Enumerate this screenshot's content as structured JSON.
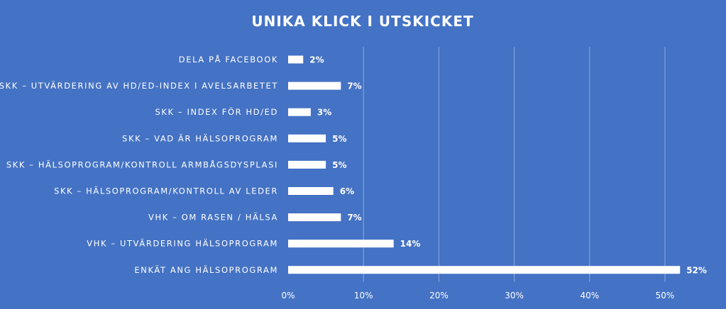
{
  "chart_data": {
    "type": "bar",
    "orientation": "horizontal",
    "title": "UNIKA KLICK I UTSKICKET",
    "categories": [
      "DELA PÅ FACEBOOK",
      "SKK – UTVÄRDERING AV HD/ED-INDEX I AVELSARBETET",
      "SKK – INDEX FÖR HD/ED",
      "SKK – VAD ÄR HÄLSOPROGRAM",
      "SKK – HÄLSOPROGRAM/KONTROLL ARMBÅGSDYSPLASI",
      "SKK – HÄLSOPROGRAM/KONTROLL AV LEDER",
      "VHK – OM RASEN / HÄLSA",
      "VHK – UTVÄRDERING HÄLSOPROGRAM",
      "ENKÄT ANG HÄLSOPROGRAM"
    ],
    "values": [
      2,
      7,
      3,
      5,
      5,
      6,
      7,
      14,
      52
    ],
    "value_labels": [
      "2%",
      "7%",
      "3%",
      "5%",
      "5%",
      "6%",
      "7%",
      "14%",
      "52%"
    ],
    "xticks": [
      "0%",
      "10%",
      "20%",
      "30%",
      "40%",
      "50%"
    ],
    "xlim": [
      0,
      55
    ],
    "grid": true,
    "colors": {
      "background": "#4472C4",
      "bar": "#FFFFFF",
      "grid": "#8FA9DC",
      "text": "#FFFFFF"
    }
  }
}
